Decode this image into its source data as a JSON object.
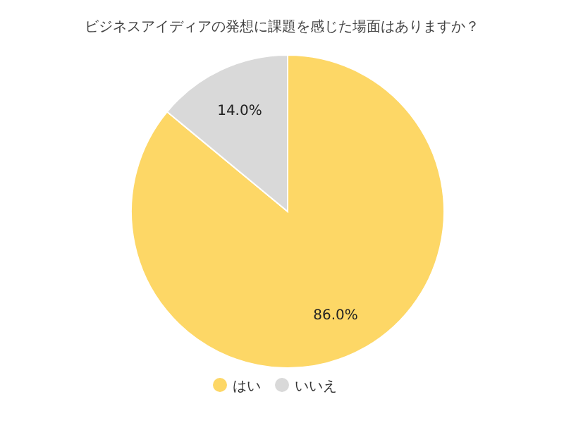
{
  "chart_data": {
    "type": "pie",
    "title": "ビジネスアイディアの発想に課題を感じた場面はありますか？",
    "categories": [
      "はい",
      "いいえ"
    ],
    "values": [
      86.0,
      14.0
    ],
    "colors": [
      "#fdd766",
      "#d9d9d9"
    ],
    "value_labels": [
      "86.0%",
      "14.0%"
    ],
    "legend": "bottom"
  }
}
